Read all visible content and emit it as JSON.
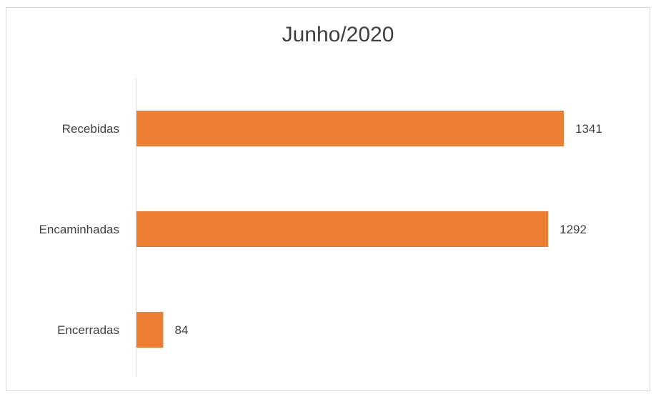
{
  "chart_data": {
    "type": "bar",
    "orientation": "horizontal",
    "title": "Junho/2020",
    "categories": [
      "Recebidas",
      "Encaminhadas",
      "Encerradas"
    ],
    "values": [
      1341,
      1292,
      84
    ],
    "data_labels": [
      "1341",
      "1292",
      "84"
    ],
    "xlabel": "",
    "ylabel": "",
    "xlim": [
      0,
      1341
    ],
    "grid": false,
    "legend": "none",
    "bar_color": "#ED7D31"
  }
}
